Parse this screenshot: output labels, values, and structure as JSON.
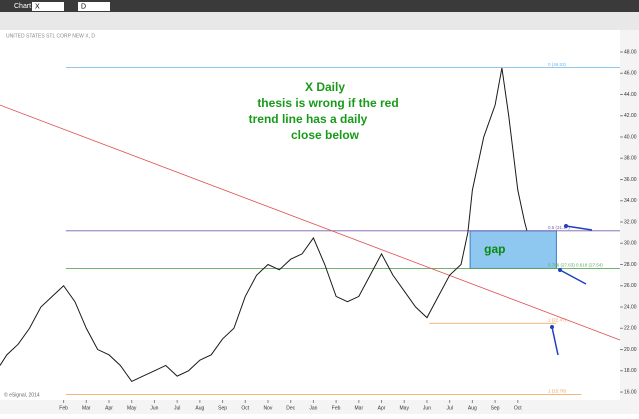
{
  "chart_data": {
    "type": "line",
    "title": "UNITED STATES STL CORP NEW X, D",
    "window_title": "Chart",
    "symbol": "X",
    "interval": "D",
    "footer": "© eSignal, 2014",
    "x": [
      -1.8,
      -1.5,
      -1,
      -0.5,
      0,
      0.5,
      1,
      1.5,
      2,
      2.5,
      3,
      3.5,
      4,
      4.5,
      5,
      5.5,
      6,
      6.5,
      7,
      7.5,
      8,
      8.5,
      9,
      9.5,
      10,
      10.5,
      11,
      11.5,
      12,
      12.5,
      13,
      13.5,
      14,
      14.5,
      15,
      15.5,
      16,
      16.5,
      17,
      17.5,
      18,
      18.5,
      18.8,
      19,
      19.5,
      20,
      20.3,
      20.6,
      21,
      21.3,
      21.4
    ],
    "series": [
      {
        "name": "X",
        "color": "#1a1a1a",
        "values": [
          18.5,
          19.5,
          20.5,
          22,
          24,
          25,
          26,
          24.5,
          22,
          20,
          19.5,
          18.5,
          17,
          17.5,
          18,
          18.5,
          17.5,
          18,
          19,
          19.5,
          21,
          22,
          25,
          27,
          28,
          27.5,
          28.5,
          29,
          30.5,
          28,
          25,
          24.5,
          25,
          27,
          29,
          27,
          25.5,
          24,
          23,
          25,
          27,
          28,
          31,
          35,
          40,
          43,
          46.5,
          42,
          35,
          32,
          31.2
        ]
      }
    ],
    "xlim": [
      -1.8,
      25.5
    ],
    "ylim": [
      15.25,
      50.07
    ],
    "xticks": [
      {
        "value": 1,
        "label": "Feb"
      },
      {
        "value": 2,
        "label": "Mar"
      },
      {
        "value": 3,
        "label": "Apr"
      },
      {
        "value": 4,
        "label": "May"
      },
      {
        "value": 5,
        "label": "Jun"
      },
      {
        "value": 6,
        "label": "Jul"
      },
      {
        "value": 7,
        "label": "Aug"
      },
      {
        "value": 8,
        "label": "Sep"
      },
      {
        "value": 9,
        "label": "Oct"
      },
      {
        "value": 10,
        "label": "Nov"
      },
      {
        "value": 11,
        "label": "Dec"
      },
      {
        "value": 12,
        "label": "Jan"
      },
      {
        "value": 13,
        "label": "Feb"
      },
      {
        "value": 14,
        "label": "Mar"
      },
      {
        "value": 15,
        "label": "Apr"
      },
      {
        "value": 16,
        "label": "May"
      },
      {
        "value": 17,
        "label": "Jun"
      },
      {
        "value": 18,
        "label": "Jul"
      },
      {
        "value": 19,
        "label": "Aug"
      },
      {
        "value": 20,
        "label": "Sep"
      },
      {
        "value": 21,
        "label": "Oct"
      }
    ],
    "yticks": [
      {
        "value": 48,
        "label": "48.00"
      },
      {
        "value": 46,
        "label": "46.00"
      },
      {
        "value": 44,
        "label": "44.00"
      },
      {
        "value": 42,
        "label": "42.00"
      },
      {
        "value": 40,
        "label": "40.00"
      },
      {
        "value": 38,
        "label": "38.00"
      },
      {
        "value": 36,
        "label": "36.00"
      },
      {
        "value": 34,
        "label": "34.00"
      },
      {
        "value": 32,
        "label": "32.00"
      },
      {
        "value": 30,
        "label": "30.00"
      },
      {
        "value": 28,
        "label": "28.00"
      },
      {
        "value": 26,
        "label": "26.00"
      },
      {
        "value": 24,
        "label": "24.00"
      },
      {
        "value": 22,
        "label": "22.00"
      },
      {
        "value": 20,
        "label": "20.00"
      },
      {
        "value": 18,
        "label": "18.00"
      },
      {
        "value": 16,
        "label": "16.00"
      }
    ],
    "levels": [
      {
        "label": "0 (46.53)",
        "value": 46.53,
        "x": [
          1.1,
          25.5
        ],
        "color": "#6fb6e8"
      },
      {
        "label": "0.5 (31.17)",
        "value": 31.17,
        "x": [
          1.1,
          25.5
        ],
        "color": "#7a5fb0"
      },
      {
        "label": "0.786 (27.63)  0.618 (27.54)",
        "value": 27.63,
        "x": [
          1.1,
          25.5
        ],
        "color": "#5aa85a"
      },
      {
        "label": "1 (22.47)",
        "value": 22.47,
        "x": [
          17.1,
          22.7
        ],
        "color": "#f0a050"
      },
      {
        "label": "1 (15.78)",
        "value": 15.78,
        "x": [
          1.1,
          23.8
        ],
        "color": "#f0a050"
      }
    ],
    "trend_line": {
      "x": [
        -1.8,
        25.5
      ],
      "values": [
        43,
        20.9
      ],
      "color": "#e05050"
    },
    "gap": {
      "label": "gap",
      "x": [
        18.9,
        22.7
      ],
      "values": [
        31.17,
        27.63
      ],
      "color": "#8ec8f0"
    },
    "annotation": [
      "X Daily",
      "thesis is wrong if the red",
      "trend line has a daily",
      "close below"
    ]
  }
}
